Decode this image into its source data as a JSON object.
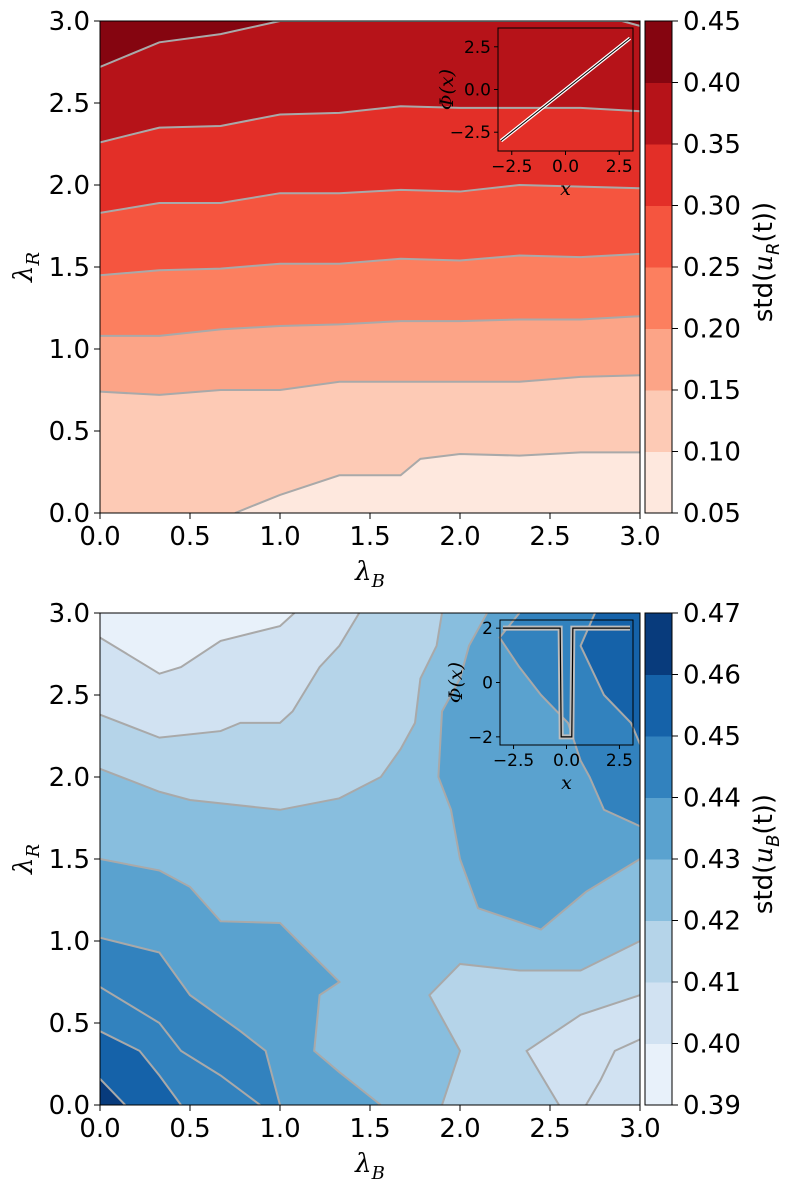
{
  "chart_data": [
    {
      "type": "contour",
      "xlabel": "λ_B",
      "ylabel": "λ_R",
      "xlim": [
        0,
        3
      ],
      "ylim": [
        0,
        3
      ],
      "xticks": [
        "0.0",
        "0.5",
        "1.0",
        "1.5",
        "2.0",
        "2.5",
        "3.0"
      ],
      "yticks": [
        "0.0",
        "0.5",
        "1.0",
        "1.5",
        "2.0",
        "2.5",
        "3.0"
      ],
      "colormap": "Reds",
      "colorbar": {
        "label": "std(u_R(t))",
        "levels": [
          0.05,
          0.1,
          0.15,
          0.2,
          0.25,
          0.3,
          0.35,
          0.4,
          0.45
        ],
        "tick_labels": [
          "0.05",
          "0.10",
          "0.15",
          "0.20",
          "0.25",
          "0.30",
          "0.35",
          "0.40",
          "0.45"
        ],
        "colors": [
          "#fee8de",
          "#fdcab5",
          "#fca487",
          "#fc7f5f",
          "#f5553f",
          "#e32f28",
          "#b61319",
          "#850510"
        ]
      },
      "contour_line_color": "#a9a9a9",
      "contour_lines": [
        {
          "level": 0.1,
          "points": [
            [
              0.75,
              0
            ],
            [
              1.0,
              0.11
            ],
            [
              1.33,
              0.23
            ],
            [
              1.67,
              0.23
            ],
            [
              1.78,
              0.33
            ],
            [
              2.0,
              0.36
            ],
            [
              2.33,
              0.35
            ],
            [
              2.67,
              0.37
            ],
            [
              3.0,
              0.37
            ]
          ]
        },
        {
          "level": 0.15,
          "points": [
            [
              0,
              0.74
            ],
            [
              0.33,
              0.72
            ],
            [
              0.67,
              0.75
            ],
            [
              1.0,
              0.75
            ],
            [
              1.33,
              0.8
            ],
            [
              1.67,
              0.8
            ],
            [
              2.0,
              0.8
            ],
            [
              2.33,
              0.8
            ],
            [
              2.67,
              0.83
            ],
            [
              3.0,
              0.84
            ]
          ]
        },
        {
          "level": 0.2,
          "points": [
            [
              0,
              1.08
            ],
            [
              0.33,
              1.08
            ],
            [
              0.67,
              1.12
            ],
            [
              1.0,
              1.14
            ],
            [
              1.33,
              1.15
            ],
            [
              1.67,
              1.17
            ],
            [
              2.0,
              1.17
            ],
            [
              2.33,
              1.18
            ],
            [
              2.67,
              1.18
            ],
            [
              3.0,
              1.2
            ]
          ]
        },
        {
          "level": 0.25,
          "points": [
            [
              0,
              1.45
            ],
            [
              0.33,
              1.48
            ],
            [
              0.67,
              1.49
            ],
            [
              1.0,
              1.52
            ],
            [
              1.33,
              1.52
            ],
            [
              1.67,
              1.55
            ],
            [
              2.0,
              1.54
            ],
            [
              2.33,
              1.57
            ],
            [
              2.67,
              1.56
            ],
            [
              3.0,
              1.58
            ]
          ]
        },
        {
          "level": 0.3,
          "points": [
            [
              0,
              1.83
            ],
            [
              0.33,
              1.89
            ],
            [
              0.67,
              1.89
            ],
            [
              1.0,
              1.95
            ],
            [
              1.33,
              1.95
            ],
            [
              1.67,
              1.97
            ],
            [
              2.0,
              1.96
            ],
            [
              2.33,
              2.0
            ],
            [
              2.67,
              1.99
            ],
            [
              3.0,
              1.98
            ]
          ]
        },
        {
          "level": 0.35,
          "points": [
            [
              0,
              2.26
            ],
            [
              0.33,
              2.35
            ],
            [
              0.67,
              2.36
            ],
            [
              1.0,
              2.43
            ],
            [
              1.33,
              2.44
            ],
            [
              1.67,
              2.48
            ],
            [
              2.0,
              2.47
            ],
            [
              2.33,
              2.47
            ],
            [
              2.67,
              2.47
            ],
            [
              3.0,
              2.45
            ]
          ]
        },
        {
          "level": 0.4,
          "points": [
            [
              0,
              2.72
            ],
            [
              0.33,
              2.87
            ],
            [
              0.67,
              2.92
            ],
            [
              1.0,
              3.0
            ],
            [
              2.9,
              3.0
            ],
            [
              3.0,
              2.97
            ]
          ]
        }
      ],
      "inset": {
        "xlabel": "x",
        "ylabel": "Φ(x)",
        "xticks": [
          "−2.5",
          "0.0",
          "2.5"
        ],
        "yticks": [
          "−2.5",
          "0.0",
          "2.5"
        ],
        "xlim": [
          -3.14,
          3.14
        ],
        "ylim": [
          -3.6,
          3.6
        ],
        "curve": "Φ(x) = x",
        "x": [
          -3.0,
          3.0
        ],
        "y": [
          -3.0,
          3.0
        ]
      }
    },
    {
      "type": "contour",
      "xlabel": "λ_B",
      "ylabel": "λ_R",
      "xlim": [
        0,
        3
      ],
      "ylim": [
        0,
        3
      ],
      "xticks": [
        "0.0",
        "0.5",
        "1.0",
        "1.5",
        "2.0",
        "2.5",
        "3.0"
      ],
      "yticks": [
        "0.0",
        "0.5",
        "1.0",
        "1.5",
        "2.0",
        "2.5",
        "3.0"
      ],
      "colormap": "Blues",
      "colorbar": {
        "label": "std(u_B(t))",
        "levels": [
          0.39,
          0.4,
          0.41,
          0.42,
          0.43,
          0.44,
          0.45,
          0.46,
          0.47
        ],
        "tick_labels": [
          "0.39",
          "0.40",
          "0.41",
          "0.42",
          "0.43",
          "0.44",
          "0.45",
          "0.46",
          "0.47"
        ],
        "colors": [
          "#e8f1fa",
          "#d1e2f2",
          "#b5d4e9",
          "#88bede",
          "#5aa2cf",
          "#3282be",
          "#1562a9",
          "#083b7c"
        ]
      },
      "contour_line_color": "#a9a9a9",
      "contour_lines": [
        {
          "level": 0.4,
          "points": [
            [
              0,
              2.85
            ],
            [
              0.33,
              2.63
            ],
            [
              0.45,
              2.67
            ],
            [
              0.67,
              2.83
            ],
            [
              1.0,
              2.92
            ],
            [
              1.08,
              3.0
            ]
          ]
        },
        {
          "level": 0.41,
          "points": [
            [
              0,
              2.38
            ],
            [
              0.33,
              2.24
            ],
            [
              0.67,
              2.28
            ],
            [
              0.78,
              2.33
            ],
            [
              1.0,
              2.33
            ],
            [
              1.07,
              2.4
            ],
            [
              1.22,
              2.67
            ],
            [
              1.33,
              2.8
            ],
            [
              1.44,
              3.0
            ]
          ]
        },
        {
          "level": 0.42,
          "points": [
            [
              0,
              2.05
            ],
            [
              0.33,
              1.91
            ],
            [
              0.5,
              1.86
            ],
            [
              1.0,
              1.8
            ],
            [
              1.33,
              1.87
            ],
            [
              1.56,
              2.0
            ],
            [
              1.67,
              2.17
            ],
            [
              1.75,
              2.33
            ],
            [
              1.78,
              2.6
            ],
            [
              1.87,
              2.8
            ],
            [
              1.9,
              3.0
            ]
          ]
        },
        {
          "level": 0.43,
          "points": [
            [
              0,
              1.5
            ],
            [
              0.33,
              1.43
            ],
            [
              0.5,
              1.33
            ],
            [
              0.67,
              1.12
            ],
            [
              1.0,
              1.11
            ],
            [
              1.1,
              1.0
            ],
            [
              1.33,
              0.75
            ],
            [
              1.22,
              0.67
            ],
            [
              1.19,
              0.33
            ],
            [
              1.33,
              0.2
            ],
            [
              1.56,
              0.0
            ]
          ]
        },
        {
          "level": 0.43,
          "points": [
            [
              3.0,
              0.4
            ],
            [
              2.86,
              0.33
            ],
            [
              2.78,
              0.15
            ],
            [
              2.7,
              0.0
            ]
          ]
        },
        {
          "level": 0.42,
          "points": [
            [
              3.0,
              1.0
            ],
            [
              2.67,
              0.82
            ],
            [
              2.33,
              0.82
            ],
            [
              2.0,
              0.86
            ],
            [
              1.83,
              0.67
            ],
            [
              2.0,
              0.33
            ],
            [
              1.9,
              0.0
            ]
          ]
        },
        {
          "level": 0.41,
          "points": [
            [
              3.0,
              0.67
            ],
            [
              2.67,
              0.55
            ],
            [
              2.37,
              0.33
            ],
            [
              2.55,
              0.0
            ]
          ]
        },
        {
          "level": 0.44,
          "points": [
            [
              0,
              0.72
            ],
            [
              0.33,
              0.5
            ],
            [
              0.45,
              0.33
            ],
            [
              0.67,
              0.18
            ],
            [
              0.89,
              0.0
            ]
          ]
        },
        {
          "level": 0.44,
          "points": [
            [
              0,
              1.02
            ],
            [
              0.33,
              0.93
            ],
            [
              0.5,
              0.67
            ],
            [
              0.78,
              0.45
            ],
            [
              0.92,
              0.33
            ],
            [
              1.0,
              0.0
            ]
          ]
        },
        {
          "level": 0.45,
          "points": [
            [
              0,
              0.16
            ],
            [
              0.14,
              0.0
            ]
          ]
        },
        {
          "level": 0.44,
          "points": [
            [
              0,
              0.45
            ],
            [
              0.22,
              0.33
            ],
            [
              0.33,
              0.18
            ],
            [
              0.45,
              0.0
            ]
          ]
        },
        {
          "level": 0.44,
          "points": [
            [
              2.15,
              3.0
            ],
            [
              2.05,
              2.8
            ],
            [
              2.0,
              2.6
            ],
            [
              1.9,
              2.4
            ],
            [
              1.88,
              2.0
            ],
            [
              1.95,
              1.8
            ],
            [
              2.0,
              1.5
            ],
            [
              2.1,
              1.2
            ],
            [
              2.45,
              1.07
            ],
            [
              2.7,
              1.3
            ],
            [
              3.0,
              1.5
            ]
          ]
        },
        {
          "level": 0.43,
          "points": [
            [
              2.33,
              3.0
            ],
            [
              2.22,
              2.85
            ],
            [
              2.33,
              2.67
            ],
            [
              2.45,
              2.5
            ],
            [
              2.6,
              2.33
            ],
            [
              2.67,
              2.1
            ],
            [
              2.72,
              2.0
            ],
            [
              2.8,
              1.8
            ],
            [
              3.0,
              1.7
            ]
          ]
        },
        {
          "level": 0.45,
          "points": [
            [
              2.75,
              3.0
            ],
            [
              2.67,
              2.8
            ],
            [
              2.8,
              2.5
            ],
            [
              2.95,
              2.33
            ],
            [
              3.0,
              2.2
            ]
          ]
        }
      ],
      "inset": {
        "xlabel": "x",
        "ylabel": "Φ(x)",
        "xticks": [
          "−2.5",
          "0.0",
          "2.5"
        ],
        "yticks": [
          "−2",
          "0",
          "2"
        ],
        "xlim": [
          -3.14,
          3.14
        ],
        "ylim": [
          -2.3,
          2.3
        ],
        "curve": "Φ(x) = 2 except a narrow well reaching −2 near x = 0",
        "x": [
          -3.0,
          -0.3,
          -0.25,
          0.25,
          0.3,
          3.0
        ],
        "y": [
          2.0,
          2.0,
          -2.0,
          -2.0,
          2.0,
          2.0
        ]
      }
    }
  ]
}
